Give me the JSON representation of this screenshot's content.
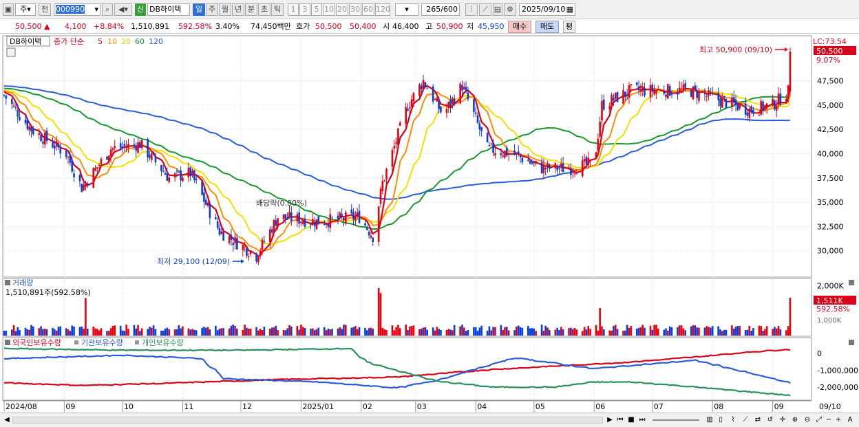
{
  "toolbar": {
    "period_type": "주",
    "prev_label": "전",
    "stock_code": "000990",
    "new_badge": "신",
    "stock_name": "DB하이텍",
    "timeframes": [
      "일",
      "주",
      "월",
      "년",
      "분",
      "초",
      "틱"
    ],
    "minute_options": [
      "1",
      "3",
      "5",
      "10",
      "20",
      "30",
      "60",
      "120"
    ],
    "bar_count": "265",
    "bar_total": "/600",
    "date": "2025/09/10"
  },
  "quote": {
    "price": "50,500",
    "change": "4,100",
    "change_pct": "+8.84%",
    "volume": "1,510,891",
    "volume_ratio": "592.58%",
    "turnover": "3.40%",
    "amount": "74,450백만",
    "bid_label": "호가",
    "ask": "50,500",
    "bid": "50,400",
    "open_label": "시",
    "open": "46,400",
    "high_label": "고",
    "high": "50,900",
    "low_label": "저",
    "low": "45,950",
    "buy_button": "매수",
    "sell_button": "매도",
    "eval_button": "평"
  },
  "price_panel": {
    "stock_tag": "DB하이텍",
    "legend_label": "종가 단순",
    "lc_label": "LC:73.54",
    "current_price_tag": "50,500",
    "current_pct": "9.07%",
    "max_label": "최고 50,900 (09/10)",
    "min_label": "최저 29,100 (12/09)",
    "dividend_label": "배당락(0.00%)"
  },
  "volume_panel": {
    "title": "거래량",
    "value_label": "1,510,891주(592.58%)",
    "current_tag": "1,511K",
    "current_pct": "592.58%",
    "partial_tick": "1,000K"
  },
  "holdings_panel": {
    "legend": [
      "외국인보유수량",
      "기관보유수량",
      "개인보유수량"
    ]
  },
  "x_axis": {
    "labels": [
      "2024/08",
      "09",
      "10",
      "11",
      "12",
      "2025/01",
      "02",
      "03",
      "04",
      "05",
      "06",
      "07",
      "08",
      "09"
    ],
    "current_label": "09/10"
  },
  "colors": {
    "up": "#e8000e",
    "down": "#0a3cd9",
    "ma5": "#d9001a",
    "ma10": "#ff8c00",
    "ma20": "#f2e000",
    "ma60": "#1a9632",
    "ma120": "#2b5bd7",
    "foreign": "#d9001a",
    "institution": "#2b5bd7",
    "individual": "#28905a"
  },
  "chart_data": [
    {
      "type": "candlestick",
      "title": "DB하이텍",
      "x_range": [
        "2024/08",
        "2025/09/10"
      ],
      "ylim": [
        27500,
        52000
      ],
      "y_ticks": [
        30000,
        32500,
        35000,
        37500,
        40000,
        42500,
        45000,
        47500
      ],
      "y_tick_labels": [
        "30,000",
        "32,500",
        "35,000",
        "37,500",
        "40,000",
        "42,500",
        "45,000",
        "47,500"
      ],
      "moving_averages": [
        {
          "name": "5",
          "color": "#d9001a"
        },
        {
          "name": "10",
          "color": "#ff8c00"
        },
        {
          "name": "20",
          "color": "#f2e000"
        },
        {
          "name": "60",
          "color": "#1a9632"
        },
        {
          "name": "120",
          "color": "#2b5bd7"
        }
      ],
      "close_keypoints": [
        {
          "date": "2024/08/01",
          "close": 46000
        },
        {
          "date": "2024/08/15",
          "close": 42500
        },
        {
          "date": "2024/09/02",
          "close": 40000
        },
        {
          "date": "2024/09/10",
          "close": 36500
        },
        {
          "date": "2024/09/25",
          "close": 40500
        },
        {
          "date": "2024/10/10",
          "close": 41000
        },
        {
          "date": "2024/10/25",
          "close": 37500
        },
        {
          "date": "2024/11/05",
          "close": 38000
        },
        {
          "date": "2024/11/20",
          "close": 32000
        },
        {
          "date": "2024/12/09",
          "close": 29500
        },
        {
          "date": "2024/12/20",
          "close": 33500
        },
        {
          "date": "2025/01/10",
          "close": 33000
        },
        {
          "date": "2025/01/31",
          "close": 33500
        },
        {
          "date": "2025/02/07",
          "close": 31500
        },
        {
          "date": "2025/02/12",
          "close": 37000
        },
        {
          "date": "2025/02/25",
          "close": 45000
        },
        {
          "date": "2025/03/05",
          "close": 47500
        },
        {
          "date": "2025/03/15",
          "close": 44000
        },
        {
          "date": "2025/03/25",
          "close": 47000
        },
        {
          "date": "2025/04/07",
          "close": 40500
        },
        {
          "date": "2025/04/20",
          "close": 40000
        },
        {
          "date": "2025/05/05",
          "close": 38500
        },
        {
          "date": "2025/05/20",
          "close": 38500
        },
        {
          "date": "2025/06/01",
          "close": 39000
        },
        {
          "date": "2025/06/05",
          "close": 45000
        },
        {
          "date": "2025/06/20",
          "close": 46500
        },
        {
          "date": "2025/07/05",
          "close": 46500
        },
        {
          "date": "2025/07/20",
          "close": 46500
        },
        {
          "date": "2025/08/05",
          "close": 45500
        },
        {
          "date": "2025/08/20",
          "close": 44500
        },
        {
          "date": "2025/09/01",
          "close": 45000
        },
        {
          "date": "2025/09/09",
          "close": 46400
        },
        {
          "date": "2025/09/10",
          "close": 50500
        }
      ],
      "annotations": [
        {
          "text": "최고 50,900 (09/10)",
          "value": 50900
        },
        {
          "text": "최저 29,100 (12/09)",
          "value": 29100
        },
        {
          "text": "배당락(0.00%)"
        }
      ]
    },
    {
      "type": "bar",
      "title": "거래량",
      "y_ticks": [
        1000000,
        2000000
      ],
      "y_tick_labels": [
        "1,000K",
        "2,000K"
      ],
      "ylim": [
        0,
        2200000
      ],
      "last_value": 1510891,
      "spikes": [
        {
          "date": "2024/09/12",
          "value": 1500000
        },
        {
          "date": "2025/02/10",
          "value": 1900000
        },
        {
          "date": "2025/02/11",
          "value": 1700000
        },
        {
          "date": "2025/06/04",
          "value": 1100000
        },
        {
          "date": "2025/09/10",
          "value": 1510891
        }
      ]
    },
    {
      "type": "line",
      "title": "보유수량",
      "y_ticks": [
        0,
        -1000000,
        -2000000
      ],
      "y_tick_labels": [
        "0",
        "-1,000,000",
        "-2,000,000"
      ],
      "series": [
        {
          "name": "외국인보유수량",
          "color": "#d9001a",
          "keypoints": [
            [
              0,
              -1750000
            ],
            [
              0.1,
              -1900000
            ],
            [
              0.2,
              -1780000
            ],
            [
              0.35,
              -1550000
            ],
            [
              0.5,
              -1400000
            ],
            [
              0.62,
              -950000
            ],
            [
              0.8,
              -500000
            ],
            [
              0.88,
              -200000
            ],
            [
              0.95,
              100000
            ],
            [
              1,
              250000
            ]
          ]
        },
        {
          "name": "기관보유수량",
          "color": "#2b5bd7",
          "keypoints": [
            [
              0,
              -300000
            ],
            [
              0.15,
              -100000
            ],
            [
              0.25,
              -300000
            ],
            [
              0.28,
              -1500000
            ],
            [
              0.4,
              -1700000
            ],
            [
              0.5,
              -2050000
            ],
            [
              0.55,
              -1600000
            ],
            [
              0.65,
              -250000
            ],
            [
              0.75,
              -900000
            ],
            [
              0.88,
              -400000
            ],
            [
              1,
              -1750000
            ]
          ]
        },
        {
          "name": "개인보유수량",
          "color": "#28905a",
          "keypoints": [
            [
              0,
              300000
            ],
            [
              0.15,
              200000
            ],
            [
              0.3,
              200000
            ],
            [
              0.44,
              300000
            ],
            [
              0.46,
              -500000
            ],
            [
              0.55,
              -1650000
            ],
            [
              0.62,
              -2000000
            ],
            [
              0.7,
              -2000000
            ],
            [
              0.75,
              -1700000
            ],
            [
              0.8,
              -1700000
            ],
            [
              0.88,
              -2000000
            ],
            [
              1,
              -2500000
            ]
          ]
        }
      ]
    }
  ]
}
